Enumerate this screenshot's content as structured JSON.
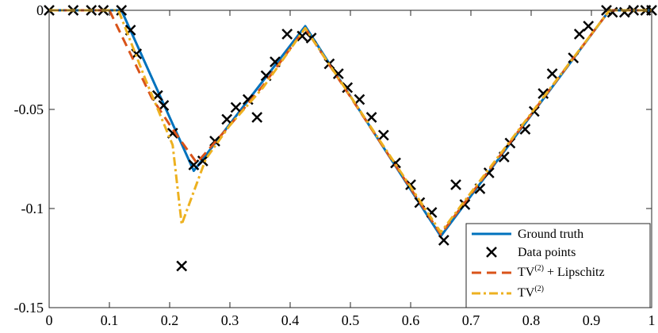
{
  "chart_data": {
    "type": "line",
    "title": "",
    "xlabel": "",
    "ylabel": "",
    "xlim": [
      0,
      1
    ],
    "ylim": [
      -0.15,
      0
    ],
    "x_ticks": [
      0,
      0.1,
      0.2,
      0.3,
      0.4,
      0.5,
      0.6,
      0.7,
      0.8,
      0.9,
      1
    ],
    "x_tick_labels": [
      "0",
      "0.1",
      "0.2",
      "0.3",
      "0.4",
      "0.5",
      "0.6",
      "0.7",
      "0.8",
      "0.9",
      "1"
    ],
    "y_ticks": [
      0,
      -0.05,
      -0.1,
      -0.15
    ],
    "y_tick_labels": [
      "0",
      "-0.05",
      "-0.1",
      "-0.15"
    ],
    "grid": false,
    "legend_position": "bottom-right",
    "series": [
      {
        "name": "Ground truth",
        "style": "solid",
        "color": "#0072BD",
        "x": [
          0,
          0.12,
          0.24,
          0.425,
          0.65,
          0.93,
          1
        ],
        "y": [
          0,
          0,
          -0.081,
          -0.008,
          -0.114,
          0,
          0
        ]
      },
      {
        "name": "Data points",
        "style": "markers-x",
        "color": "#000000",
        "x": [
          0.0,
          0.04,
          0.07,
          0.09,
          0.12,
          0.135,
          0.145,
          0.18,
          0.19,
          0.205,
          0.22,
          0.24,
          0.255,
          0.275,
          0.295,
          0.31,
          0.33,
          0.345,
          0.36,
          0.375,
          0.395,
          0.42,
          0.435,
          0.465,
          0.48,
          0.495,
          0.515,
          0.535,
          0.555,
          0.575,
          0.6,
          0.615,
          0.635,
          0.655,
          0.675,
          0.69,
          0.715,
          0.73,
          0.755,
          0.765,
          0.79,
          0.805,
          0.82,
          0.835,
          0.87,
          0.88,
          0.895,
          0.925,
          0.935,
          0.955,
          0.97,
          0.99,
          1.0
        ],
        "y": [
          0,
          0,
          0,
          0,
          0,
          -0.01,
          -0.022,
          -0.043,
          -0.048,
          -0.062,
          -0.129,
          -0.078,
          -0.076,
          -0.066,
          -0.055,
          -0.049,
          -0.045,
          -0.054,
          -0.033,
          -0.026,
          -0.012,
          -0.013,
          -0.014,
          -0.027,
          -0.032,
          -0.039,
          -0.045,
          -0.054,
          -0.063,
          -0.077,
          -0.088,
          -0.097,
          -0.102,
          -0.116,
          -0.088,
          -0.098,
          -0.09,
          -0.082,
          -0.074,
          -0.067,
          -0.06,
          -0.051,
          -0.042,
          -0.032,
          -0.024,
          -0.012,
          -0.008,
          0,
          -0.001,
          -0.001,
          0,
          0,
          0
        ]
      },
      {
        "name": "TV(2) + Lipschitz",
        "style": "dashed",
        "color": "#D95319",
        "x": [
          0,
          0.1,
          0.135,
          0.17,
          0.205,
          0.245,
          0.3,
          0.355,
          0.425,
          0.65,
          0.93,
          1
        ],
        "y": [
          0,
          0,
          -0.022,
          -0.044,
          -0.06,
          -0.077,
          -0.058,
          -0.038,
          -0.009,
          -0.113,
          0,
          0
        ]
      },
      {
        "name": "TV(2)",
        "style": "dashdot",
        "color": "#EDB120",
        "x": [
          0,
          0.115,
          0.16,
          0.205,
          0.22,
          0.26,
          0.3,
          0.355,
          0.425,
          0.65,
          0.93,
          1
        ],
        "y": [
          0,
          0,
          -0.035,
          -0.068,
          -0.108,
          -0.075,
          -0.058,
          -0.039,
          -0.009,
          -0.112,
          0,
          0
        ]
      }
    ],
    "legend": {
      "ground_truth": "Ground truth",
      "data_points": "Data points",
      "tv2_lipschitz_base": "TV",
      "tv2_lipschitz_sup": "(2)",
      "tv2_lipschitz_suffix": " + Lipschitz",
      "tv2_base": "TV",
      "tv2_sup": "(2)"
    }
  }
}
